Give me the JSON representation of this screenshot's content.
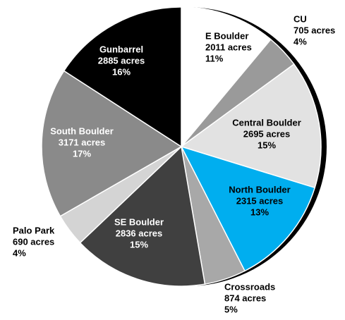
{
  "chart_data": {
    "type": "pie",
    "categories": [
      "E Boulder",
      "CU",
      "Central Boulder",
      "North Boulder",
      "Crossroads",
      "SE Boulder",
      "Palo Park",
      "South Boulder",
      "Gunbarrel"
    ],
    "values": [
      2011,
      705,
      2695,
      2315,
      874,
      2836,
      690,
      3171,
      2885
    ],
    "value_labels": [
      "2011 acres",
      "705 acres",
      "2695 acres",
      "2315 acres",
      "874 acres",
      "2836 acres",
      "690 acres",
      "3171 acres",
      "2885 acres"
    ],
    "percentage_labels": [
      "11%",
      "4%",
      "15%",
      "13%",
      "5%",
      "15%",
      "4%",
      "17%",
      "16%"
    ],
    "colors": [
      "#ffffff",
      "#9a9a9a",
      "#e2e2e2",
      "#00aeef",
      "#a8a8a8",
      "#404040",
      "#d4d4d4",
      "#8a8a8a",
      "#000000"
    ],
    "label_colors": [
      "#000000",
      "#000000",
      "#000000",
      "#000000",
      "#000000",
      "#ffffff",
      "#000000",
      "#ffffff",
      "#ffffff"
    ]
  }
}
